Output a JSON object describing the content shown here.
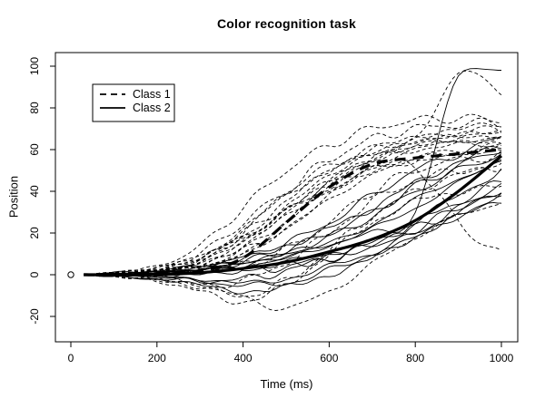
{
  "chart_data": {
    "type": "line",
    "title": "Color recognition task",
    "xlabel": "Time (ms)",
    "ylabel": "Position",
    "x_ticks": [
      0,
      200,
      400,
      600,
      800,
      1000
    ],
    "y_ticks": [
      -20,
      0,
      20,
      40,
      60,
      80,
      100
    ],
    "xlim": [
      -40,
      1040
    ],
    "ylim": [
      -32,
      106
    ],
    "grid": false,
    "colors": {
      "foreground": "#000000",
      "background": "#ffffff"
    },
    "origin_marker": {
      "shape": "open-circle",
      "x": 0,
      "y": 0
    },
    "legend": {
      "position": "top-left",
      "items": [
        {
          "label": "Class 1",
          "style": "dashed"
        },
        {
          "label": "Class 2",
          "style": "solid"
        }
      ]
    },
    "x": [
      30,
      100,
      200,
      300,
      400,
      500,
      600,
      700,
      800,
      900,
      1000
    ],
    "series": [
      {
        "name": "Class 1 trajectories",
        "style": "dashed",
        "width": "thin",
        "curves": [
          [
            0,
            0,
            1,
            3,
            10,
            22,
            36,
            48,
            55,
            58,
            60
          ],
          [
            0,
            1,
            2,
            5,
            15,
            30,
            45,
            55,
            60,
            62,
            63
          ],
          [
            0,
            0,
            -2,
            -5,
            -3,
            6,
            20,
            35,
            45,
            50,
            52
          ],
          [
            0,
            1,
            3,
            10,
            25,
            40,
            52,
            60,
            65,
            68,
            70
          ],
          [
            0,
            0,
            2,
            8,
            22,
            38,
            50,
            58,
            62,
            64,
            65
          ],
          [
            0,
            -1,
            -3,
            -8,
            -13,
            -5,
            10,
            25,
            35,
            40,
            42
          ],
          [
            0,
            1,
            3,
            8,
            18,
            30,
            45,
            55,
            65,
            96,
            88
          ],
          [
            0,
            0,
            1,
            2,
            5,
            12,
            25,
            40,
            50,
            55,
            57
          ],
          [
            0,
            1,
            2,
            6,
            18,
            35,
            50,
            60,
            66,
            70,
            72
          ],
          [
            0,
            0,
            -1,
            -5,
            -11,
            -16,
            -8,
            5,
            18,
            28,
            35
          ],
          [
            0,
            1,
            3,
            9,
            20,
            32,
            42,
            50,
            55,
            58,
            60
          ],
          [
            0,
            0,
            2,
            7,
            20,
            40,
            55,
            65,
            70,
            72,
            73
          ],
          [
            0,
            1,
            2,
            4,
            10,
            22,
            38,
            52,
            60,
            64,
            66
          ],
          [
            0,
            0,
            1,
            5,
            14,
            28,
            44,
            56,
            63,
            66,
            68
          ],
          [
            0,
            -1,
            -2,
            -6,
            -10,
            -3,
            12,
            28,
            40,
            48,
            52
          ],
          [
            0,
            1,
            3,
            8,
            18,
            30,
            42,
            50,
            52,
            25,
            10
          ],
          [
            0,
            0,
            2,
            6,
            16,
            32,
            48,
            58,
            64,
            67,
            68
          ],
          [
            0,
            1,
            2,
            5,
            12,
            25,
            42,
            55,
            62,
            66,
            67
          ],
          [
            0,
            0,
            1,
            4,
            12,
            26,
            40,
            50,
            56,
            60,
            62
          ],
          [
            0,
            1,
            4,
            14,
            32,
            50,
            62,
            70,
            74,
            75,
            74
          ]
        ]
      },
      {
        "name": "Class 2 trajectories",
        "style": "solid",
        "width": "thin",
        "curves": [
          [
            0,
            0,
            1,
            2,
            4,
            8,
            14,
            22,
            32,
            44,
            55
          ],
          [
            0,
            0,
            0,
            1,
            3,
            6,
            10,
            16,
            26,
            38,
            50
          ],
          [
            0,
            -1,
            -2,
            -3,
            -2,
            2,
            8,
            15,
            25,
            35,
            45
          ],
          [
            0,
            0,
            1,
            3,
            6,
            12,
            20,
            30,
            42,
            52,
            60
          ],
          [
            0,
            0,
            -1,
            -2,
            -4,
            -2,
            4,
            10,
            18,
            28,
            38
          ],
          [
            0,
            1,
            2,
            4,
            8,
            14,
            22,
            32,
            44,
            54,
            62
          ],
          [
            0,
            0,
            0,
            2,
            5,
            10,
            18,
            28,
            40,
            50,
            58
          ],
          [
            0,
            0,
            1,
            2,
            3,
            5,
            8,
            14,
            22,
            32,
            42
          ],
          [
            0,
            -1,
            -2,
            -5,
            -8,
            -6,
            0,
            8,
            18,
            28,
            36
          ],
          [
            0,
            0,
            1,
            3,
            6,
            10,
            15,
            20,
            30,
            95,
            97
          ],
          [
            0,
            0,
            2,
            4,
            8,
            15,
            25,
            38,
            50,
            58,
            66
          ],
          [
            0,
            0,
            0,
            1,
            2,
            4,
            8,
            14,
            22,
            32,
            40
          ],
          [
            0,
            1,
            1,
            3,
            5,
            9,
            15,
            24,
            36,
            46,
            54
          ],
          [
            0,
            0,
            -1,
            -3,
            -5,
            -4,
            2,
            10,
            20,
            30,
            40
          ]
        ]
      },
      {
        "name": "Class 1 mean",
        "style": "dashed",
        "width": "thick",
        "values": [
          0,
          0,
          1,
          2,
          8,
          25,
          42,
          53,
          56,
          58,
          60
        ]
      },
      {
        "name": "Class 2 mean",
        "style": "solid",
        "width": "thick",
        "values": [
          0,
          0,
          0,
          1,
          3,
          6,
          11,
          17,
          26,
          40,
          57
        ]
      }
    ]
  }
}
